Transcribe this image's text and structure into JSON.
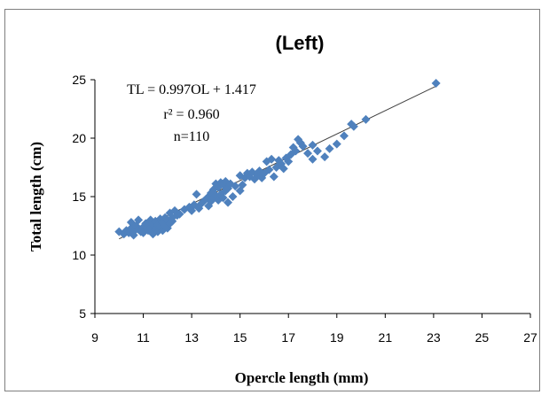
{
  "chart_data": {
    "type": "scatter",
    "title": "(Left)",
    "xlabel": "Opercle length (mm)",
    "ylabel": "Total length (cm)",
    "xlim": [
      9,
      27
    ],
    "ylim": [
      5,
      25
    ],
    "xticks": [
      9,
      11,
      13,
      15,
      17,
      19,
      21,
      23,
      25,
      27
    ],
    "yticks": [
      5,
      10,
      15,
      20,
      25
    ],
    "grid": false,
    "marker": "diamond",
    "marker_color": "#4f81bd",
    "trendline_color": "#404040",
    "annotations": [
      "TL = 0.997OL + 1.417",
      "r² = 0.960",
      "n=110"
    ],
    "trendline": {
      "slope": 0.997,
      "intercept": 1.417,
      "x_range": [
        10.0,
        23.1
      ]
    },
    "points": [
      [
        10.0,
        12.0
      ],
      [
        10.2,
        11.8
      ],
      [
        10.3,
        12.1
      ],
      [
        10.4,
        11.9
      ],
      [
        10.5,
        12.3
      ],
      [
        10.5,
        12.8
      ],
      [
        10.6,
        11.7
      ],
      [
        10.6,
        12.0
      ],
      [
        10.7,
        12.5
      ],
      [
        10.8,
        13.0
      ],
      [
        10.8,
        12.2
      ],
      [
        10.9,
        12.0
      ],
      [
        11.0,
        12.4
      ],
      [
        11.0,
        11.9
      ],
      [
        11.1,
        12.7
      ],
      [
        11.2,
        12.1
      ],
      [
        11.2,
        12.5
      ],
      [
        11.3,
        13.0
      ],
      [
        11.3,
        12.3
      ],
      [
        11.4,
        11.8
      ],
      [
        11.4,
        12.6
      ],
      [
        11.5,
        12.9
      ],
      [
        11.5,
        12.2
      ],
      [
        11.6,
        12.6
      ],
      [
        11.6,
        12.0
      ],
      [
        11.7,
        13.1
      ],
      [
        11.7,
        12.4
      ],
      [
        11.8,
        12.8
      ],
      [
        11.8,
        12.1
      ],
      [
        11.9,
        13.2
      ],
      [
        11.9,
        12.5
      ],
      [
        12.0,
        12.3
      ],
      [
        12.0,
        13.0
      ],
      [
        12.1,
        12.7
      ],
      [
        12.1,
        13.6
      ],
      [
        12.2,
        13.2
      ],
      [
        12.2,
        12.9
      ],
      [
        12.3,
        13.8
      ],
      [
        12.4,
        13.4
      ],
      [
        12.5,
        13.5
      ],
      [
        12.7,
        13.9
      ],
      [
        12.9,
        14.1
      ],
      [
        13.0,
        13.8
      ],
      [
        13.1,
        14.3
      ],
      [
        13.2,
        15.2
      ],
      [
        13.3,
        14.0
      ],
      [
        13.4,
        14.4
      ],
      [
        13.5,
        14.6
      ],
      [
        13.6,
        14.8
      ],
      [
        13.7,
        15.0
      ],
      [
        13.7,
        14.2
      ],
      [
        13.8,
        15.3
      ],
      [
        13.8,
        14.6
      ],
      [
        13.9,
        15.6
      ],
      [
        13.9,
        14.9
      ],
      [
        14.0,
        15.1
      ],
      [
        14.0,
        16.1
      ],
      [
        14.1,
        14.7
      ],
      [
        14.1,
        15.8
      ],
      [
        14.2,
        16.2
      ],
      [
        14.2,
        15.2
      ],
      [
        14.3,
        16.0
      ],
      [
        14.3,
        14.9
      ],
      [
        14.4,
        15.5
      ],
      [
        14.4,
        16.3
      ],
      [
        14.5,
        14.5
      ],
      [
        14.5,
        15.7
      ],
      [
        14.6,
        16.1
      ],
      [
        14.7,
        15.0
      ],
      [
        14.8,
        15.9
      ],
      [
        15.0,
        15.5
      ],
      [
        15.0,
        16.8
      ],
      [
        15.1,
        16.0
      ],
      [
        15.2,
        16.6
      ],
      [
        15.3,
        17.0
      ],
      [
        15.4,
        16.7
      ],
      [
        15.5,
        17.1
      ],
      [
        15.6,
        16.5
      ],
      [
        15.7,
        16.9
      ],
      [
        15.8,
        17.2
      ],
      [
        15.9,
        16.6
      ],
      [
        16.0,
        17.0
      ],
      [
        16.1,
        18.0
      ],
      [
        16.2,
        17.3
      ],
      [
        16.3,
        18.2
      ],
      [
        16.4,
        16.7
      ],
      [
        16.5,
        17.5
      ],
      [
        16.6,
        18.1
      ],
      [
        16.7,
        17.8
      ],
      [
        16.8,
        17.4
      ],
      [
        16.9,
        18.3
      ],
      [
        17.0,
        18.0
      ],
      [
        17.1,
        18.6
      ],
      [
        17.2,
        19.2
      ],
      [
        17.3,
        18.9
      ],
      [
        17.4,
        19.9
      ],
      [
        17.5,
        19.6
      ],
      [
        17.6,
        19.3
      ],
      [
        17.8,
        18.7
      ],
      [
        18.0,
        18.2
      ],
      [
        18.0,
        19.4
      ],
      [
        18.2,
        18.9
      ],
      [
        18.5,
        18.4
      ],
      [
        18.7,
        19.1
      ],
      [
        19.0,
        19.5
      ],
      [
        19.3,
        20.2
      ],
      [
        19.6,
        21.2
      ],
      [
        19.7,
        21.0
      ],
      [
        20.2,
        21.6
      ],
      [
        23.1,
        24.7
      ]
    ]
  }
}
